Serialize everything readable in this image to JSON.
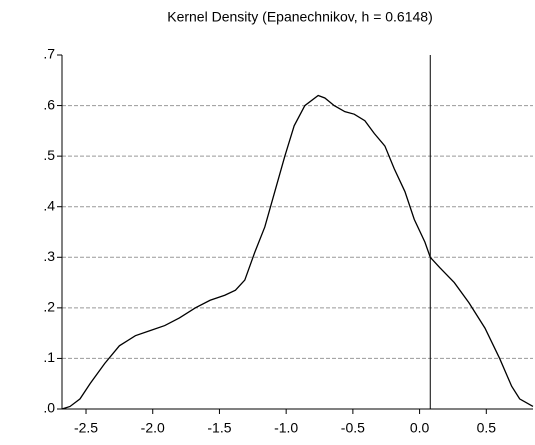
{
  "chart_data": {
    "type": "line",
    "title": "Kernel Density (Epanechnikov, h = 0.6148)",
    "x": [
      -2.68,
      -2.62,
      -2.545,
      -2.47,
      -2.36,
      -2.25,
      -2.13,
      -2.02,
      -1.91,
      -1.8,
      -1.68,
      -1.57,
      -1.46,
      -1.38,
      -1.31,
      -1.235,
      -1.16,
      -1.085,
      -1.01,
      -0.94,
      -0.86,
      -0.76,
      -0.71,
      -0.64,
      -0.56,
      -0.49,
      -0.41,
      -0.34,
      -0.26,
      -0.19,
      -0.11,
      -0.04,
      0.04,
      0.08,
      0.15,
      0.26,
      0.37,
      0.49,
      0.6,
      0.69,
      0.75,
      0.85
    ],
    "series": [
      {
        "color": "#000000",
        "values": [
          0.0,
          0.005,
          0.02,
          0.05,
          0.09,
          0.125,
          0.145,
          0.155,
          0.165,
          0.18,
          0.2,
          0.215,
          0.225,
          0.235,
          0.255,
          0.31,
          0.36,
          0.43,
          0.5,
          0.56,
          0.6,
          0.62,
          0.615,
          0.6,
          0.588,
          0.583,
          0.57,
          0.545,
          0.52,
          0.475,
          0.43,
          0.375,
          0.33,
          0.3,
          0.28,
          0.25,
          0.21,
          0.16,
          0.1,
          0.045,
          0.02,
          0.005
        ]
      }
    ],
    "vline": 0.08,
    "xlim": [
      -2.68,
      0.85
    ],
    "ylim": [
      0,
      0.7
    ],
    "xticks": [
      -2.5,
      {
        "value": -2.0,
        "label": "-2.0"
      },
      -1.5,
      {
        "value": -1.0,
        "label": "-1.0"
      },
      -0.5,
      {
        "value": 0,
        "label": "0.0"
      },
      0.5
    ],
    "yticks": [
      {
        "value": 0,
        "label": ".0"
      },
      {
        "value": 0.1,
        "label": ".1"
      },
      {
        "value": 0.2,
        "label": ".2"
      },
      {
        "value": 0.3,
        "label": ".3"
      },
      {
        "value": 0.4,
        "label": ".4"
      },
      {
        "value": 0.5,
        "label": ".5"
      },
      {
        "value": 0.6,
        "label": ".6"
      },
      {
        "value": 0.7,
        "label": ".7"
      }
    ],
    "grid": true
  }
}
